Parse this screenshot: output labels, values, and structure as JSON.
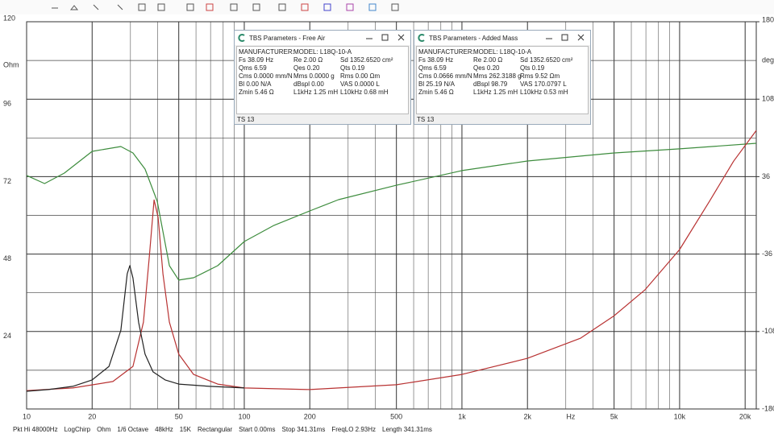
{
  "chart_data": {
    "type": "line",
    "xscale": "log",
    "xlim": [
      10,
      22500
    ],
    "ylim": [
      0,
      120
    ],
    "y2lim": [
      -180,
      180
    ],
    "xticks": [
      10,
      20,
      50,
      100,
      200,
      500,
      {
        "value": 1000,
        "label": "1k"
      },
      {
        "value": 2000,
        "label": "2k"
      },
      {
        "value": 5000,
        "label": "5k"
      },
      {
        "value": 10000,
        "label": "10k"
      },
      {
        "value": 20000,
        "label": "20k"
      }
    ],
    "x_minor_ticks": [
      30,
      40,
      60,
      70,
      80,
      90,
      300,
      400,
      600,
      700,
      800,
      900,
      3000,
      4000,
      6000,
      7000,
      8000,
      9000
    ],
    "xlabel": "Hz",
    "yticks": [
      24,
      48,
      72,
      96,
      120
    ],
    "y_minor_ticks": [
      12,
      36,
      60,
      84,
      108
    ],
    "ylabel": "Ohm",
    "y2ticks": [
      -180,
      -108,
      -36,
      36,
      108,
      180
    ],
    "y2label": "deg",
    "grid": true,
    "series": [
      {
        "color": "#3d8c3d",
        "axis": "y2",
        "x": [
          10,
          12.1,
          14.9,
          20,
          27.1,
          30.8,
          35,
          39.8,
          45.3,
          50,
          58.5,
          75.5,
          100,
          137,
          200,
          271,
          500,
          1000,
          2000,
          5000,
          10000,
          22500
        ],
        "values": [
          37.1,
          29.6,
          39.3,
          59.5,
          64,
          58,
          43,
          13.1,
          -46.8,
          -60.2,
          -58,
          -46.8,
          -24.3,
          -9.3,
          4.1,
          14.6,
          28,
          41.6,
          50.5,
          58,
          61.8,
          67
        ]
      },
      {
        "color": "#b83232",
        "x": [
          10,
          16.3,
          24.9,
          30.8,
          34.4,
          36.6,
          38.5,
          40.2,
          42.3,
          45.3,
          50,
          58.5,
          75.5,
          100,
          200,
          500,
          1000,
          2000,
          3499,
          5000,
          6930,
          10000,
          13700,
          17700,
          22500
        ],
        "values": [
          5.7,
          6.5,
          8.5,
          13.2,
          26.9,
          46.9,
          64.8,
          59.4,
          41.9,
          26.9,
          17,
          10.7,
          7.7,
          6.5,
          6,
          7.5,
          10.7,
          15.7,
          21.9,
          28.9,
          36.9,
          49.4,
          64.3,
          76.8,
          86.3
        ]
      },
      {
        "color": "#222222",
        "x": [
          10,
          12.6,
          16.3,
          20,
          23.9,
          27.1,
          29,
          29.8,
          30.8,
          32.7,
          35,
          38.1,
          43.3,
          50,
          69.3,
          100
        ],
        "values": [
          5.5,
          6,
          7,
          9,
          13.2,
          24.4,
          41.9,
          44.4,
          40.6,
          26.9,
          17,
          11.5,
          9,
          7.7,
          7,
          6.5
        ]
      }
    ]
  },
  "windows": [
    {
      "title": "TBS Parameters - Free Air",
      "rows": [
        [
          "MANUFACTURER:",
          "MODEL: L18Q-10-A"
        ],
        [
          "Fs 38.09 Hz",
          "Re 2.00 Ω",
          "Sd 1352.6520 cm²"
        ],
        [
          "Qms 6.59",
          "Qes 0.20",
          "Qts 0.19"
        ],
        [
          "Cms 0.0000 mm/N",
          "Mms 0.0000 g",
          "Rms 0.00 Ωm"
        ],
        [
          "Bl 0.00 N/A",
          "dBspl 0.00",
          "VAS 0.0000 L"
        ],
        [
          "Zmin 5.46 Ω",
          "L1kHz 1.25 mH",
          "L10kHz 0.68 mH"
        ]
      ],
      "status": "TS 13"
    },
    {
      "title": "TBS Parameters - Added Mass",
      "rows": [
        [
          "MANUFACTURER:",
          "MODEL: L18Q-10-A"
        ],
        [
          "Fs 38.09 Hz",
          "Re 2.00 Ω",
          "Sd 1352.6520 cm²"
        ],
        [
          "Qms 6.59",
          "Qes 0.20",
          "Qts 0.19"
        ],
        [
          "Cms 0.0666 mm/N",
          "Mms 262.3188 g",
          "Rms 9.52 Ωm"
        ],
        [
          "Bl 25.19 N/A",
          "dBspl 98.79",
          "VAS 170.0797 L"
        ],
        [
          "Zmin 5.46 Ω",
          "L1kHz 1.25 mH",
          "L10kHz 0.53 mH"
        ]
      ],
      "status": "TS 13"
    }
  ],
  "status_bar": [
    "Pkt Hi 48000Hz",
    "LogChirp",
    "Ohm",
    "1/6 Octave",
    "48kHz",
    "15K",
    "Rectangular",
    "Start 0.00ms",
    "Stop 341.31ms",
    "FreqLO 2.93Hz",
    "Length 341.31ms"
  ]
}
